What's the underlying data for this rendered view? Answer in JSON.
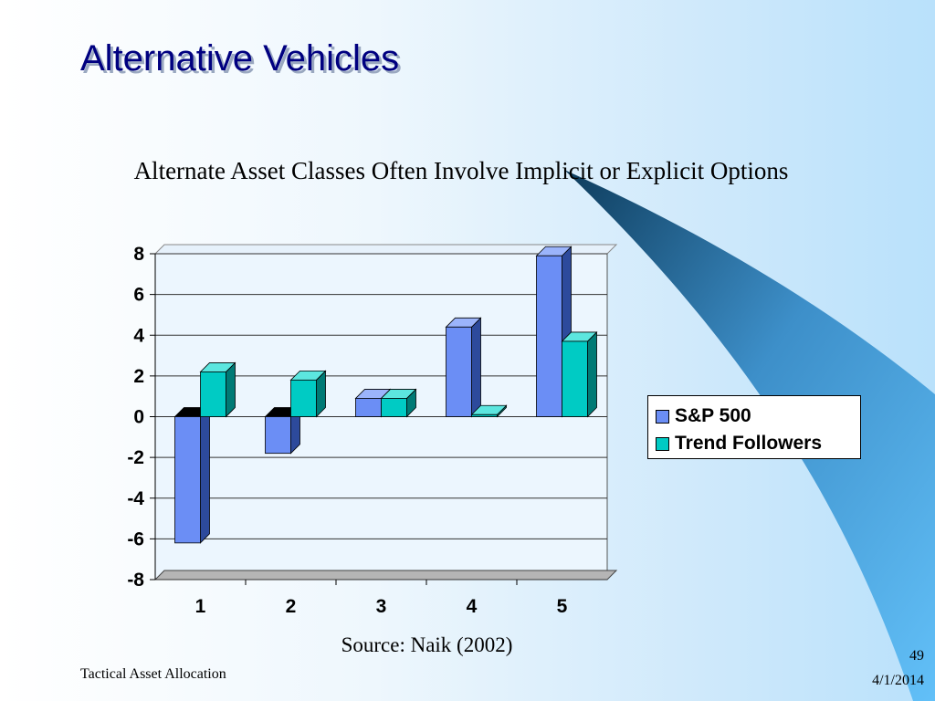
{
  "slide": {
    "title": "Alternative Vehicles",
    "subtitle": "Alternate Asset Classes Often Involve Implicit or Explicit Options",
    "source": "Source: Naik (2002)",
    "footer_left": "Tactical Asset Allocation",
    "page_number": "49",
    "date": "4/1/2014"
  },
  "colors": {
    "sp500": "#6b8ef5",
    "trend_followers": "#00cbc4",
    "title": "#000080"
  },
  "chart_data": {
    "type": "bar",
    "style": "3d-clustered-column",
    "categories": [
      "1",
      "2",
      "3",
      "4",
      "5"
    ],
    "series": [
      {
        "name": "S&P 500",
        "values": [
          -6.2,
          -1.8,
          0.9,
          4.4,
          7.9
        ]
      },
      {
        "name": "Trend Followers",
        "values": [
          2.2,
          1.8,
          0.9,
          0.1,
          3.7
        ]
      }
    ],
    "yticks": [
      "8",
      "6",
      "4",
      "2",
      "0",
      "-2",
      "-4",
      "-6",
      "-8"
    ],
    "ylim": [
      -8,
      8
    ],
    "grid": true,
    "legend_position": "right"
  }
}
